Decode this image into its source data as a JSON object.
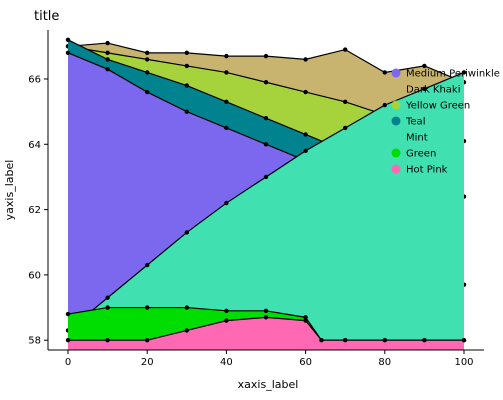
{
  "chart_data": {
    "type": "area",
    "title": "title",
    "xlabel": "xaxis_label",
    "ylabel": "yaxis_label",
    "xlim": [
      0,
      100
    ],
    "ylim": [
      57.7,
      67.5
    ],
    "x_ticks": [
      0,
      20,
      40,
      60,
      80,
      100
    ],
    "y_ticks": [
      58,
      60,
      62,
      64,
      66
    ],
    "grid": false,
    "legend_position": "right",
    "series": [
      {
        "name": "Dark Khaki",
        "color": "#c8b46e",
        "x": [
          0,
          10,
          20,
          30,
          40,
          50,
          60,
          70,
          80,
          90,
          100
        ],
        "y": [
          67.0,
          67.1,
          66.8,
          66.8,
          66.7,
          66.7,
          66.6,
          66.9,
          66.2,
          66.4,
          65.9
        ]
      },
      {
        "name": "Yellow Green",
        "color": "#a6d33c",
        "x": [
          0,
          10,
          20,
          30,
          40,
          50,
          60,
          70,
          80,
          90,
          100
        ],
        "y": [
          67.0,
          66.8,
          66.6,
          66.4,
          66.2,
          65.9,
          65.6,
          65.3,
          64.9,
          64.5,
          64.1
        ]
      },
      {
        "name": "Teal",
        "color": "#00838f",
        "x": [
          0,
          10,
          20,
          30,
          40,
          50,
          60,
          70,
          80,
          90,
          100
        ],
        "y": [
          67.2,
          66.6,
          66.2,
          65.8,
          65.3,
          64.8,
          64.3,
          63.8,
          63.3,
          62.8,
          62.4
        ]
      },
      {
        "name": "Medium Periwinkle",
        "color": "#7b68ee",
        "x": [
          0,
          10,
          20,
          30,
          40,
          50,
          60,
          65,
          70,
          80,
          90,
          100
        ],
        "y": [
          66.8,
          66.3,
          65.6,
          65.0,
          64.5,
          64.0,
          63.5,
          62.4,
          62.1,
          60.8,
          60.6,
          59.7
        ]
      },
      {
        "name": "Mint",
        "color": "#40e0b0",
        "x": [
          0,
          10,
          20,
          30,
          40,
          50,
          60,
          70,
          80,
          90,
          100
        ],
        "y": [
          58.3,
          59.3,
          60.3,
          61.3,
          62.2,
          63.0,
          63.8,
          64.5,
          65.2,
          65.7,
          66.2
        ]
      },
      {
        "name": "Green",
        "color": "#00dd00",
        "x": [
          0,
          10,
          20,
          30,
          40,
          50,
          60,
          64,
          70,
          80,
          90,
          100
        ],
        "y": [
          58.8,
          59.0,
          59.0,
          59.0,
          58.9,
          58.9,
          58.7,
          58.0,
          58.0,
          58.0,
          58.0,
          58.0
        ]
      },
      {
        "name": "Hot Pink",
        "color": "#ff69b4",
        "x": [
          0,
          10,
          20,
          30,
          40,
          50,
          60,
          64,
          70,
          80,
          90,
          100
        ],
        "y": [
          58.0,
          58.0,
          58.0,
          58.3,
          58.6,
          58.7,
          58.6,
          58.0,
          58.0,
          58.0,
          58.0,
          58.0
        ]
      }
    ]
  }
}
